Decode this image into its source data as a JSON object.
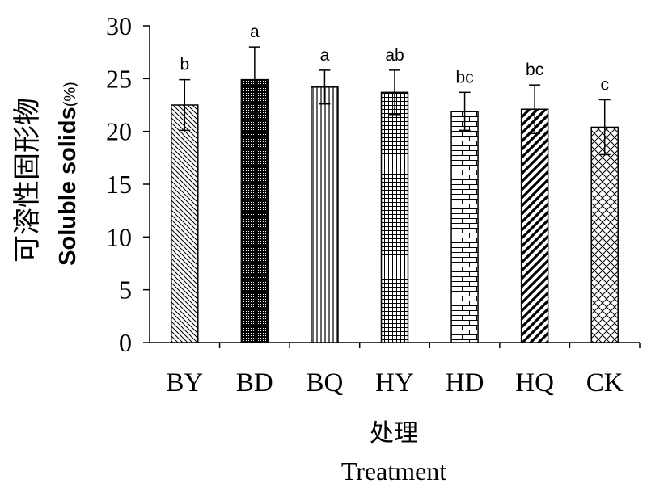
{
  "chart_data": {
    "type": "bar",
    "categories": [
      "BY",
      "BD",
      "BQ",
      "HY",
      "HD",
      "HQ",
      "CK"
    ],
    "values": [
      22.5,
      24.9,
      24.2,
      23.7,
      21.9,
      22.1,
      20.4
    ],
    "errors": [
      2.4,
      3.1,
      1.6,
      2.1,
      1.8,
      2.3,
      2.6
    ],
    "significance": [
      "b",
      "a",
      "a",
      "ab",
      "bc",
      "bc",
      "c"
    ],
    "ylim": [
      0,
      30
    ],
    "yticks": [
      "0",
      "5",
      "10",
      "15",
      "20",
      "25",
      "30"
    ],
    "ylabel_cn": "可溶性固形物",
    "ylabel_en": "Soluble solids",
    "ylabel_unit": "(%)",
    "xlabel_cn": "处理",
    "xlabel_en": "Treatment",
    "grid": false,
    "bar_fill_patterns": [
      "backslash-dense",
      "dots-dense",
      "vertical-lines",
      "grid",
      "bricks",
      "diagonal-wide",
      "crosshatch"
    ]
  }
}
